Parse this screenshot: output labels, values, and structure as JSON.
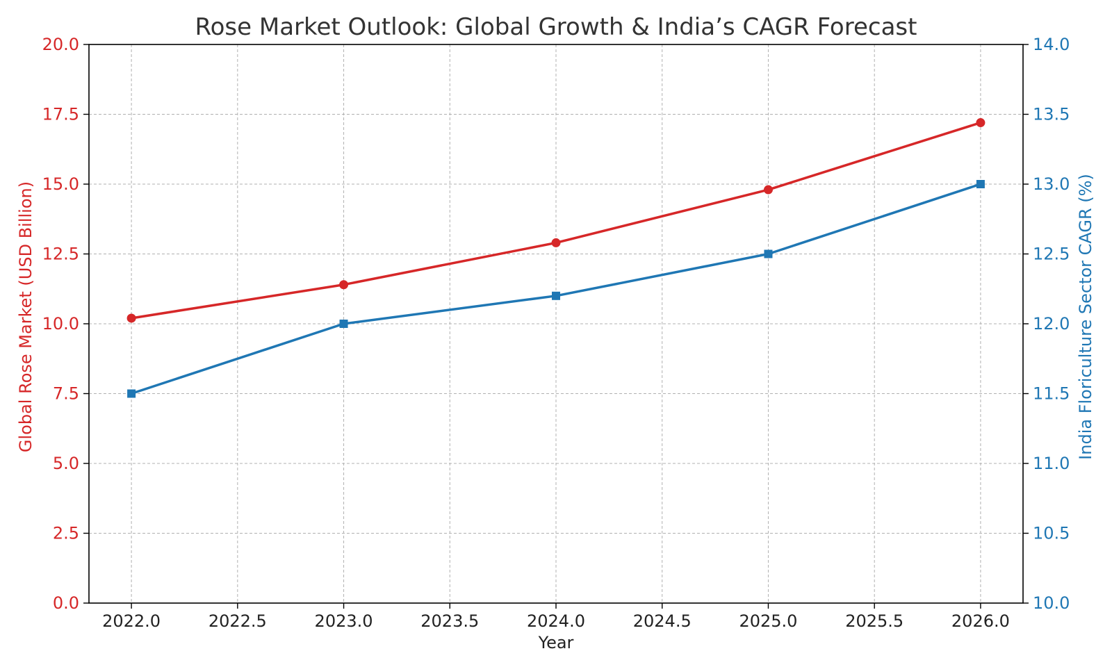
{
  "chart_data": {
    "type": "line",
    "title": "Rose Market Outlook: Global Growth & India’s CAGR Forecast",
    "xlabel": "Year",
    "x": [
      2022,
      2023,
      2024,
      2025,
      2026
    ],
    "xlim": [
      2021.8,
      2026.2
    ],
    "xticks": [
      2022.0,
      2022.5,
      2023.0,
      2023.5,
      2024.0,
      2024.5,
      2025.0,
      2025.5,
      2026.0
    ],
    "xtick_labels": [
      "2022.0",
      "2022.5",
      "2023.0",
      "2023.5",
      "2024.0",
      "2024.5",
      "2025.0",
      "2025.5",
      "2026.0"
    ],
    "left_axis": {
      "label": "Global Rose Market (USD Billion)",
      "ylim": [
        0,
        20
      ],
      "ticks": [
        0,
        2.5,
        5,
        7.5,
        10,
        12.5,
        15,
        17.5,
        20
      ],
      "tick_labels": [
        "0.0",
        "2.5",
        "5.0",
        "7.5",
        "10.0",
        "12.5",
        "15.0",
        "17.5",
        "20.0"
      ],
      "color": "#d62728"
    },
    "right_axis": {
      "label": "India Floriculture Sector CAGR (%)",
      "ylim": [
        10,
        14
      ],
      "ticks": [
        10,
        10.5,
        11,
        11.5,
        12,
        12.5,
        13,
        13.5,
        14
      ],
      "tick_labels": [
        "10.0",
        "10.5",
        "11.0",
        "11.5",
        "12.0",
        "12.5",
        "13.0",
        "13.5",
        "14.0"
      ],
      "color": "#1f77b4"
    },
    "series": [
      {
        "name": "Global Rose Market (USD Billion)",
        "axis": "left",
        "color": "#d62728",
        "marker": "circle",
        "values": [
          10.2,
          11.4,
          12.9,
          14.8,
          17.2
        ]
      },
      {
        "name": "India Floriculture Sector CAGR (%)",
        "axis": "right",
        "color": "#1f77b4",
        "marker": "square",
        "values": [
          11.5,
          12.0,
          12.2,
          12.5,
          13.0
        ]
      }
    ],
    "grid": true
  }
}
